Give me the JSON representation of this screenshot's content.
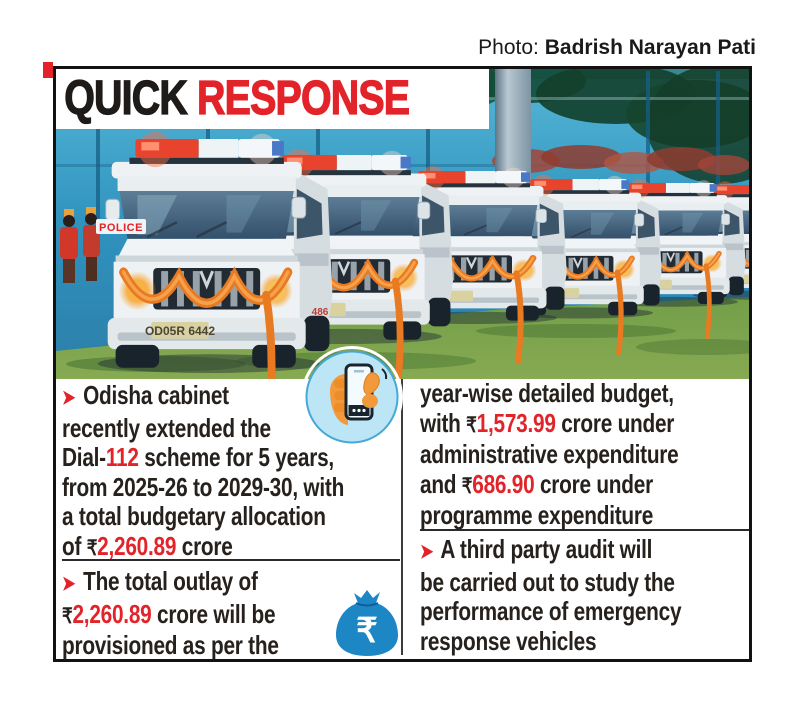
{
  "photo_credit": {
    "label": "Photo:",
    "name": "Badrish Narayan Pati"
  },
  "title": {
    "quick": "QUICK",
    "response": "RESPONSE"
  },
  "colors": {
    "accent_red": "#e2242a",
    "text_dark": "#26211d",
    "icon_blue": "#1d87c6",
    "icon_circle_bg": "#bce6f6",
    "hand_orange": "#f2993b",
    "garland_orange": "#e87a22"
  },
  "columns": {
    "left": [
      {
        "lines": [
          [
            {
              "t": "➤",
              "s": "arrow"
            },
            {
              "t": " Odisha cabinet",
              "s": "n"
            }
          ],
          [
            {
              "t": "recently extended the",
              "s": "n"
            }
          ],
          [
            {
              "t": "Dial-",
              "s": "n"
            },
            {
              "t": "112",
              "s": "red"
            },
            {
              "t": " scheme for 5 years,",
              "s": "n"
            }
          ],
          [
            {
              "t": "from 2025-26 to 2029-30, with",
              "s": "n"
            }
          ],
          [
            {
              "t": "a total budgetary allocation",
              "s": "n"
            }
          ],
          [
            {
              "t": "of ",
              "s": "n"
            },
            {
              "t": "₹",
              "s": "rupee"
            },
            {
              "t": "2,260.89",
              "s": "red"
            },
            {
              "t": " crore",
              "s": "n"
            }
          ]
        ]
      },
      {
        "lines": [
          [
            {
              "t": "➤",
              "s": "arrow"
            },
            {
              "t": " The total outlay of",
              "s": "n"
            }
          ],
          [
            {
              "t": "₹",
              "s": "rupee"
            },
            {
              "t": "2,260.89",
              "s": "red"
            },
            {
              "t": " crore will be",
              "s": "n"
            }
          ],
          [
            {
              "t": "provisioned as per the",
              "s": "n"
            }
          ]
        ]
      }
    ],
    "right": [
      {
        "lines": [
          [
            {
              "t": "year-wise detailed budget,",
              "s": "n"
            }
          ],
          [
            {
              "t": "with ",
              "s": "n"
            },
            {
              "t": "₹",
              "s": "rupee"
            },
            {
              "t": "1,573.99",
              "s": "red"
            },
            {
              "t": " crore under",
              "s": "n"
            }
          ],
          [
            {
              "t": "administrative expenditure",
              "s": "n"
            }
          ],
          [
            {
              "t": "and ",
              "s": "n"
            },
            {
              "t": "₹",
              "s": "rupee"
            },
            {
              "t": "686.90",
              "s": "red"
            },
            {
              "t": " crore under",
              "s": "n"
            }
          ],
          [
            {
              "t": "programme expenditure",
              "s": "n"
            }
          ]
        ]
      },
      {
        "lines": [
          [
            {
              "t": "➤",
              "s": "arrow"
            },
            {
              "t": " A third party audit will",
              "s": "n"
            }
          ],
          [
            {
              "t": "be carried out to study the",
              "s": "n"
            }
          ],
          [
            {
              "t": "performance of emergency",
              "s": "n"
            }
          ],
          [
            {
              "t": "response vehicles",
              "s": "n"
            }
          ]
        ]
      }
    ]
  },
  "photo": {
    "police_label": "POLICE",
    "plate_front": "OD05R 6442",
    "plate_second": "486"
  },
  "icons": {
    "phone_in_hand": "dial-112-phone-icon",
    "money_bag": {
      "name": "money-bag-icon",
      "symbol": "₹"
    }
  }
}
